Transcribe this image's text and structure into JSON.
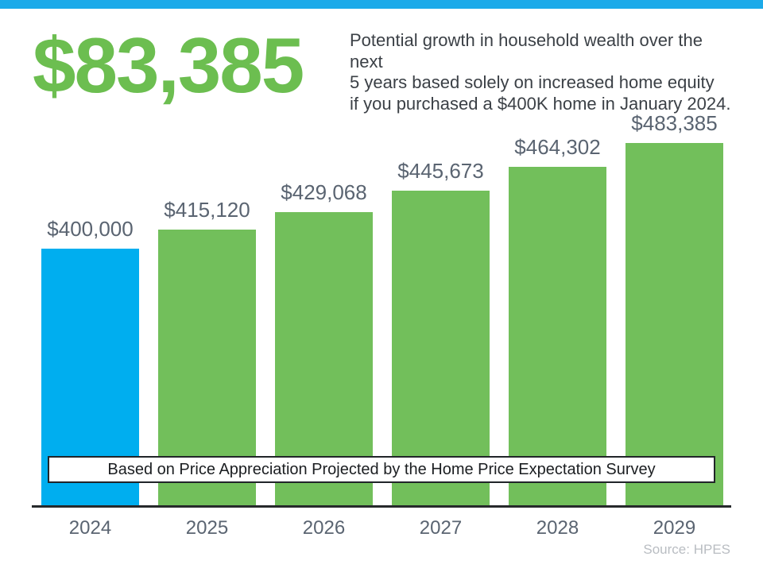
{
  "page": {
    "accent_strip_color": "#1caae9",
    "background_color": "#ffffff"
  },
  "header": {
    "headline": "$83,385",
    "headline_color": "#6cbe50",
    "description_lines": [
      "Potential growth in household wealth over the next",
      "5 years based solely on increased home equity",
      "if you purchased a $400K home in January 2024."
    ]
  },
  "chart_data": {
    "type": "bar",
    "title": "",
    "xlabel": "",
    "ylabel": "",
    "categories": [
      "2024",
      "2025",
      "2026",
      "2027",
      "2028",
      "2029"
    ],
    "values": [
      400000,
      415120,
      429068,
      445673,
      464302,
      483385
    ],
    "value_labels": [
      "$400,000",
      "$415,120",
      "$429,068",
      "$445,673",
      "$464,302",
      "$483,385"
    ],
    "bar_colors": [
      "#00aeef",
      "#72bf5b",
      "#72bf5b",
      "#72bf5b",
      "#72bf5b",
      "#72bf5b"
    ],
    "highlight_color": "#00aeef",
    "series_color": "#72bf5b",
    "ylim": [
      196900,
      483385
    ],
    "grid": false,
    "legend": false,
    "annotation": "Based on Price Appreciation Projected by the Home Price Expectation Survey"
  },
  "footer": {
    "source": "Source: HPES"
  }
}
